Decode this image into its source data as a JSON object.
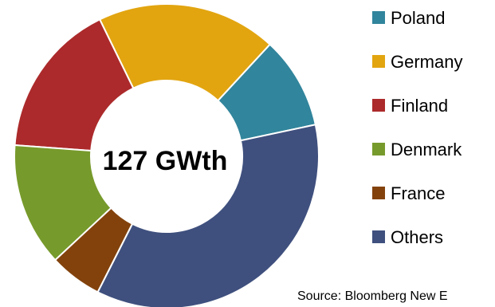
{
  "chart_data": {
    "type": "donut",
    "center_label": "127 GWth",
    "categories": [
      "Poland",
      "Germany",
      "Finland",
      "Denmark",
      "France",
      "Others"
    ],
    "values": [
      9.8,
      19.1,
      16.6,
      13.1,
      5.6,
      35.8
    ],
    "value_unit": "percent",
    "start_angle_deg": 12,
    "direction": "counterclockwise",
    "colors": [
      "#31859C",
      "#E2A510",
      "#AC2A2B",
      "#779A2C",
      "#83420C",
      "#3F507E"
    ],
    "legend_position": "right",
    "source_note": "Source: Bloomberg New E"
  }
}
